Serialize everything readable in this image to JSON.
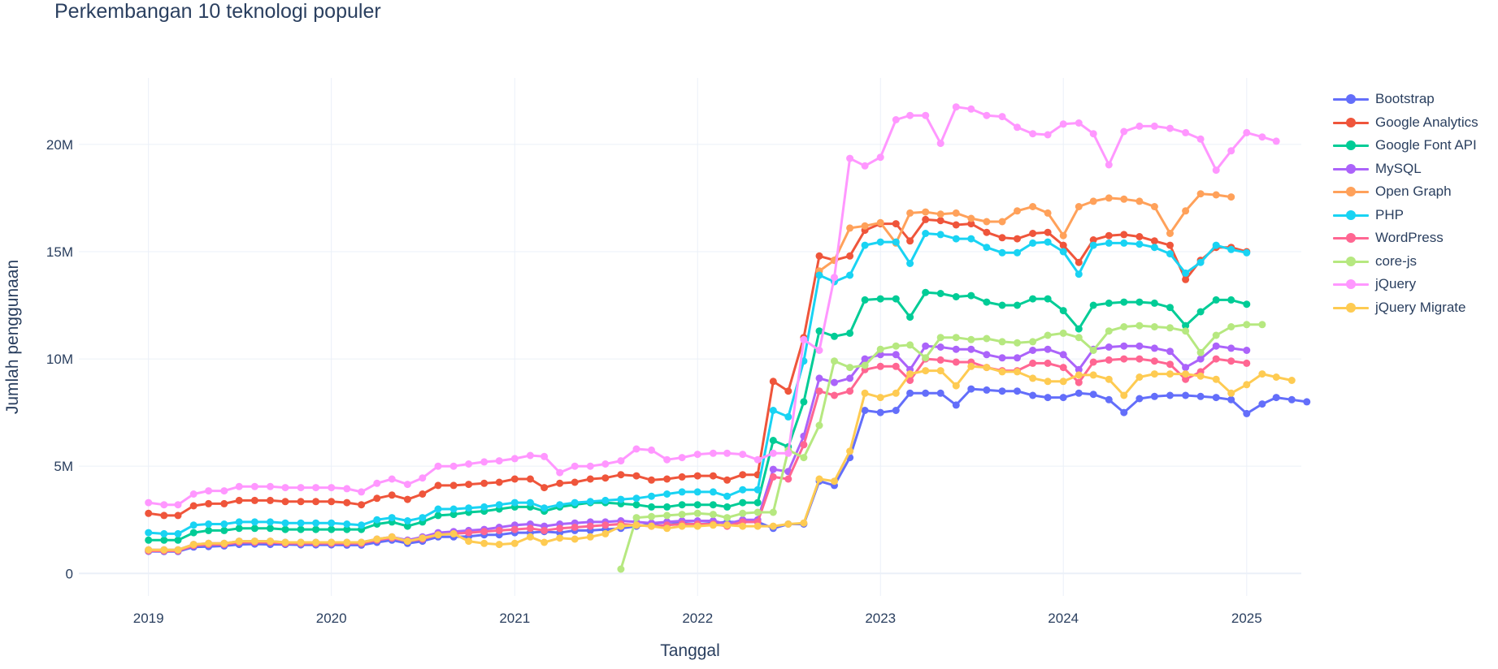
{
  "chart_data": {
    "type": "line",
    "title": "Perkembangan 10 teknologi populer",
    "xlabel": "Tanggal",
    "ylabel": "Jumlah penggunaan",
    "x_ticks": [
      "2019",
      "2020",
      "2021",
      "2022",
      "2023",
      "2024",
      "2025"
    ],
    "y_ticks": [
      {
        "value": 0,
        "label": "0"
      },
      {
        "value": 5000000,
        "label": "5M"
      },
      {
        "value": 10000000,
        "label": "10M"
      },
      {
        "value": 15000000,
        "label": "15M"
      },
      {
        "value": 20000000,
        "label": "20M"
      }
    ],
    "xlim": [
      "2018-08-15",
      "2025-04-20"
    ],
    "ylim": [
      -1050000,
      23100000
    ],
    "grid": true,
    "legend_position": "right",
    "x_start": "2019-01-01",
    "series": [
      {
        "name": "Bootstrap",
        "color": "#636efa",
        "start": "2019-01-01",
        "values": [
          1.03,
          1.02,
          1.02,
          1.23,
          1.25,
          1.28,
          1.35,
          1.37,
          1.35,
          1.35,
          1.33,
          1.33,
          1.33,
          1.32,
          1.32,
          1.45,
          1.55,
          1.4,
          1.5,
          1.7,
          1.7,
          1.72,
          1.8,
          1.8,
          1.9,
          1.9,
          1.95,
          1.9,
          2.0,
          2.0,
          2.05,
          2.1,
          2.2,
          2.3,
          2.4,
          2.35,
          2.3,
          2.35,
          2.4,
          2.4,
          2.4,
          2.1,
          2.3,
          2.3,
          4.3,
          4.1,
          5.4,
          7.6,
          7.5,
          7.6,
          8.4,
          8.4,
          8.4,
          7.85,
          8.6,
          8.55,
          8.5,
          8.5,
          8.3,
          8.2,
          8.2,
          8.4,
          8.35,
          8.1,
          7.5,
          8.15,
          8.25,
          8.3,
          8.3,
          8.25,
          8.2,
          8.1,
          7.45,
          7.9,
          8.2,
          8.1,
          8.0
        ]
      },
      {
        "name": "Google Analytics",
        "color": "#ef553b",
        "start": "2019-01-01",
        "values": [
          2.8,
          2.7,
          2.7,
          3.15,
          3.25,
          3.25,
          3.4,
          3.4,
          3.4,
          3.35,
          3.35,
          3.35,
          3.35,
          3.3,
          3.2,
          3.5,
          3.65,
          3.45,
          3.7,
          4.1,
          4.1,
          4.15,
          4.2,
          4.25,
          4.4,
          4.4,
          4.0,
          4.2,
          4.25,
          4.4,
          4.45,
          4.6,
          4.55,
          4.35,
          4.4,
          4.5,
          4.55,
          4.55,
          4.35,
          4.6,
          4.6,
          8.95,
          8.5,
          11.0,
          14.8,
          14.6,
          14.8,
          16.0,
          16.3,
          16.3,
          15.5,
          16.5,
          16.45,
          16.25,
          16.3,
          15.9,
          15.65,
          15.6,
          15.85,
          15.9,
          15.3,
          14.5,
          15.55,
          15.75,
          15.8,
          15.7,
          15.5,
          15.3,
          13.7,
          14.6,
          15.2,
          15.2,
          15.0
        ]
      },
      {
        "name": "Google Font API",
        "color": "#00cc96",
        "start": "2019-01-01",
        "values": [
          1.55,
          1.55,
          1.55,
          1.9,
          2.0,
          2.0,
          2.1,
          2.1,
          2.1,
          2.05,
          2.05,
          2.05,
          2.05,
          2.05,
          2.05,
          2.3,
          2.4,
          2.2,
          2.4,
          2.7,
          2.75,
          2.85,
          2.9,
          3.0,
          3.1,
          3.1,
          2.9,
          3.1,
          3.2,
          3.3,
          3.3,
          3.25,
          3.2,
          3.1,
          3.1,
          3.2,
          3.2,
          3.2,
          3.1,
          3.3,
          3.3,
          6.2,
          5.9,
          8.0,
          11.3,
          11.05,
          11.2,
          12.75,
          12.8,
          12.8,
          11.95,
          13.1,
          13.05,
          12.9,
          12.95,
          12.65,
          12.5,
          12.5,
          12.8,
          12.8,
          12.25,
          11.4,
          12.5,
          12.6,
          12.65,
          12.65,
          12.6,
          12.4,
          11.55,
          12.2,
          12.75,
          12.75,
          12.55
        ]
      },
      {
        "name": "MySQL",
        "color": "#ab63fa",
        "start": "2019-01-01",
        "values": [
          1.1,
          1.1,
          1.1,
          1.35,
          1.4,
          1.4,
          1.5,
          1.5,
          1.5,
          1.45,
          1.45,
          1.45,
          1.45,
          1.45,
          1.45,
          1.6,
          1.7,
          1.55,
          1.7,
          1.9,
          1.95,
          2.0,
          2.05,
          2.15,
          2.25,
          2.3,
          2.2,
          2.3,
          2.35,
          2.4,
          2.4,
          2.45,
          2.4,
          2.35,
          2.4,
          2.45,
          2.45,
          2.45,
          2.3,
          2.5,
          2.5,
          4.85,
          4.75,
          6.4,
          9.1,
          8.9,
          9.1,
          10.0,
          10.2,
          10.2,
          9.5,
          10.6,
          10.55,
          10.45,
          10.45,
          10.2,
          10.05,
          10.05,
          10.4,
          10.45,
          10.2,
          9.5,
          10.45,
          10.55,
          10.6,
          10.6,
          10.5,
          10.35,
          9.6,
          10.0,
          10.6,
          10.5,
          10.4
        ]
      },
      {
        "name": "Open Graph",
        "color": "#ffa15a",
        "start": "2022-09-01",
        "values": [
          14.1,
          14.6,
          16.1,
          16.2,
          16.35,
          15.4,
          16.8,
          16.85,
          16.75,
          16.8,
          16.55,
          16.4,
          16.4,
          16.9,
          17.1,
          16.8,
          15.75,
          17.1,
          17.35,
          17.5,
          17.45,
          17.35,
          17.1,
          15.85,
          16.9,
          17.7,
          17.65,
          17.55
        ]
      },
      {
        "name": "PHP",
        "color": "#19d3f3",
        "start": "2019-01-01",
        "values": [
          1.9,
          1.85,
          1.85,
          2.25,
          2.3,
          2.3,
          2.4,
          2.4,
          2.4,
          2.35,
          2.35,
          2.35,
          2.35,
          2.3,
          2.25,
          2.5,
          2.6,
          2.45,
          2.6,
          3.0,
          3.0,
          3.05,
          3.1,
          3.2,
          3.3,
          3.3,
          3.05,
          3.2,
          3.3,
          3.35,
          3.4,
          3.45,
          3.5,
          3.6,
          3.7,
          3.8,
          3.8,
          3.8,
          3.6,
          3.9,
          3.9,
          7.6,
          7.3,
          9.9,
          13.9,
          13.6,
          13.9,
          15.3,
          15.45,
          15.45,
          14.45,
          15.85,
          15.8,
          15.6,
          15.6,
          15.2,
          14.95,
          14.95,
          15.4,
          15.45,
          15.0,
          13.95,
          15.3,
          15.4,
          15.4,
          15.35,
          15.2,
          14.9,
          14.0,
          14.5,
          15.3,
          15.1,
          14.95
        ]
      },
      {
        "name": "WordPress",
        "color": "#ff6692",
        "start": "2019-01-01",
        "values": [
          1.05,
          1.05,
          1.05,
          1.3,
          1.35,
          1.35,
          1.45,
          1.45,
          1.45,
          1.4,
          1.4,
          1.4,
          1.4,
          1.4,
          1.4,
          1.55,
          1.65,
          1.5,
          1.6,
          1.8,
          1.85,
          1.9,
          1.95,
          2.0,
          2.05,
          2.1,
          2.0,
          2.1,
          2.15,
          2.2,
          2.25,
          2.3,
          2.25,
          2.2,
          2.25,
          2.3,
          2.3,
          2.3,
          2.2,
          2.4,
          2.4,
          4.5,
          4.4,
          6.0,
          8.5,
          8.3,
          8.5,
          9.5,
          9.65,
          9.65,
          9.0,
          10.0,
          9.95,
          9.85,
          9.85,
          9.6,
          9.45,
          9.45,
          9.8,
          9.8,
          9.6,
          8.9,
          9.85,
          9.95,
          10.0,
          10.0,
          9.9,
          9.75,
          9.05,
          9.4,
          10.0,
          9.9,
          9.8
        ]
      },
      {
        "name": "core-js",
        "color": "#b6e880",
        "start": "2021-08-01",
        "values": [
          0.2,
          2.6,
          2.65,
          2.7,
          2.75,
          2.8,
          2.75,
          2.6,
          2.8,
          2.85,
          2.85,
          5.75,
          5.4,
          6.9,
          9.9,
          9.6,
          9.7,
          10.45,
          10.6,
          10.65,
          10.05,
          11.0,
          11.0,
          10.9,
          10.95,
          10.8,
          10.75,
          10.8,
          11.1,
          11.2,
          11.0,
          10.4,
          11.3,
          11.5,
          11.55,
          11.5,
          11.45,
          11.3,
          10.3,
          11.1,
          11.5,
          11.6,
          11.6
        ]
      },
      {
        "name": "jQuery",
        "color": "#ff97ff",
        "start": "2019-01-01",
        "values": [
          3.3,
          3.2,
          3.2,
          3.7,
          3.85,
          3.85,
          4.05,
          4.05,
          4.05,
          4.0,
          4.0,
          4.0,
          4.0,
          3.95,
          3.8,
          4.2,
          4.4,
          4.15,
          4.45,
          5.0,
          5.0,
          5.1,
          5.2,
          5.25,
          5.35,
          5.5,
          5.45,
          4.7,
          5.0,
          5.0,
          5.1,
          5.25,
          5.8,
          5.75,
          5.3,
          5.4,
          5.55,
          5.6,
          5.6,
          5.55,
          5.3,
          5.6,
          5.6,
          10.9,
          10.4,
          13.8,
          19.35,
          19.0,
          19.4,
          21.15,
          21.35,
          21.35,
          20.05,
          21.75,
          21.65,
          21.35,
          21.3,
          20.8,
          20.5,
          20.45,
          20.95,
          21.0,
          20.5,
          19.05,
          20.6,
          20.85,
          20.85,
          20.75,
          20.55,
          20.25,
          18.8,
          19.7,
          20.55,
          20.35,
          20.15
        ]
      },
      {
        "name": "jQuery Migrate",
        "color": "#fecb52",
        "start": "2019-01-01",
        "values": [
          1.1,
          1.1,
          1.1,
          1.35,
          1.4,
          1.4,
          1.5,
          1.5,
          1.5,
          1.45,
          1.45,
          1.45,
          1.45,
          1.45,
          1.45,
          1.6,
          1.7,
          1.5,
          1.65,
          1.8,
          1.85,
          1.5,
          1.4,
          1.35,
          1.4,
          1.7,
          1.45,
          1.65,
          1.6,
          1.7,
          1.85,
          2.2,
          2.25,
          2.2,
          2.1,
          2.2,
          2.2,
          2.25,
          2.25,
          2.2,
          2.2,
          2.2,
          2.3,
          2.35,
          4.4,
          4.3,
          5.7,
          8.4,
          8.2,
          8.4,
          9.3,
          9.45,
          9.45,
          8.75,
          9.65,
          9.6,
          9.4,
          9.4,
          9.1,
          8.95,
          8.95,
          9.25,
          9.25,
          9.05,
          8.3,
          9.15,
          9.3,
          9.3,
          9.3,
          9.2,
          9.05,
          8.4,
          8.8,
          9.3,
          9.15,
          9.0
        ]
      }
    ]
  }
}
